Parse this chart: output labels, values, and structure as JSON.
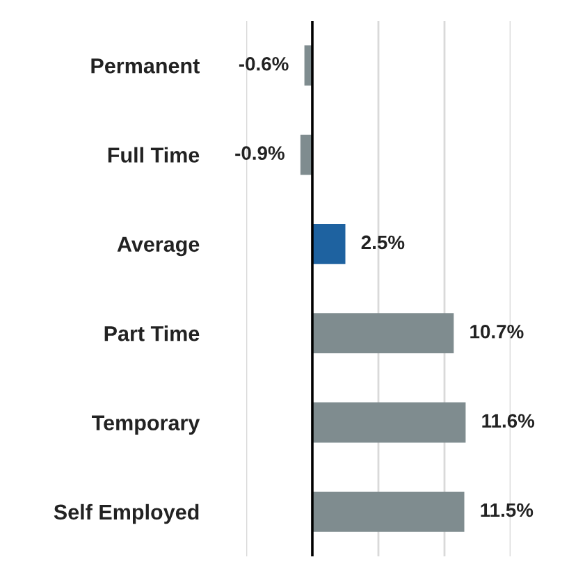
{
  "chart_data": {
    "type": "bar",
    "orientation": "horizontal",
    "categories": [
      "Permanent",
      "Full Time",
      "Average",
      "Part Time",
      "Temporary",
      "Self Employed"
    ],
    "values": [
      -0.6,
      -0.9,
      2.5,
      10.7,
      11.6,
      11.5
    ],
    "colors": [
      "#7f8c8f",
      "#7f8c8f",
      "#1e62a0",
      "#7f8c8f",
      "#7f8c8f",
      "#7f8c8f"
    ],
    "value_labels": [
      "-0.6%",
      "-0.9%",
      "2.5%",
      "10.7%",
      "11.6%",
      "11.5%"
    ],
    "xlim": [
      -5,
      15
    ],
    "xticks": [
      {
        "value": -5,
        "label": null
      },
      {
        "value": 0,
        "label": null
      },
      {
        "value": 5,
        "label": null
      },
      {
        "value": 10,
        "label": null
      },
      {
        "value": 15,
        "label": null
      }
    ],
    "tick_labels": "y",
    "grid": "x",
    "ref_lines": [
      {
        "axis": "x",
        "value": 0,
        "color": "#000000"
      }
    ]
  }
}
